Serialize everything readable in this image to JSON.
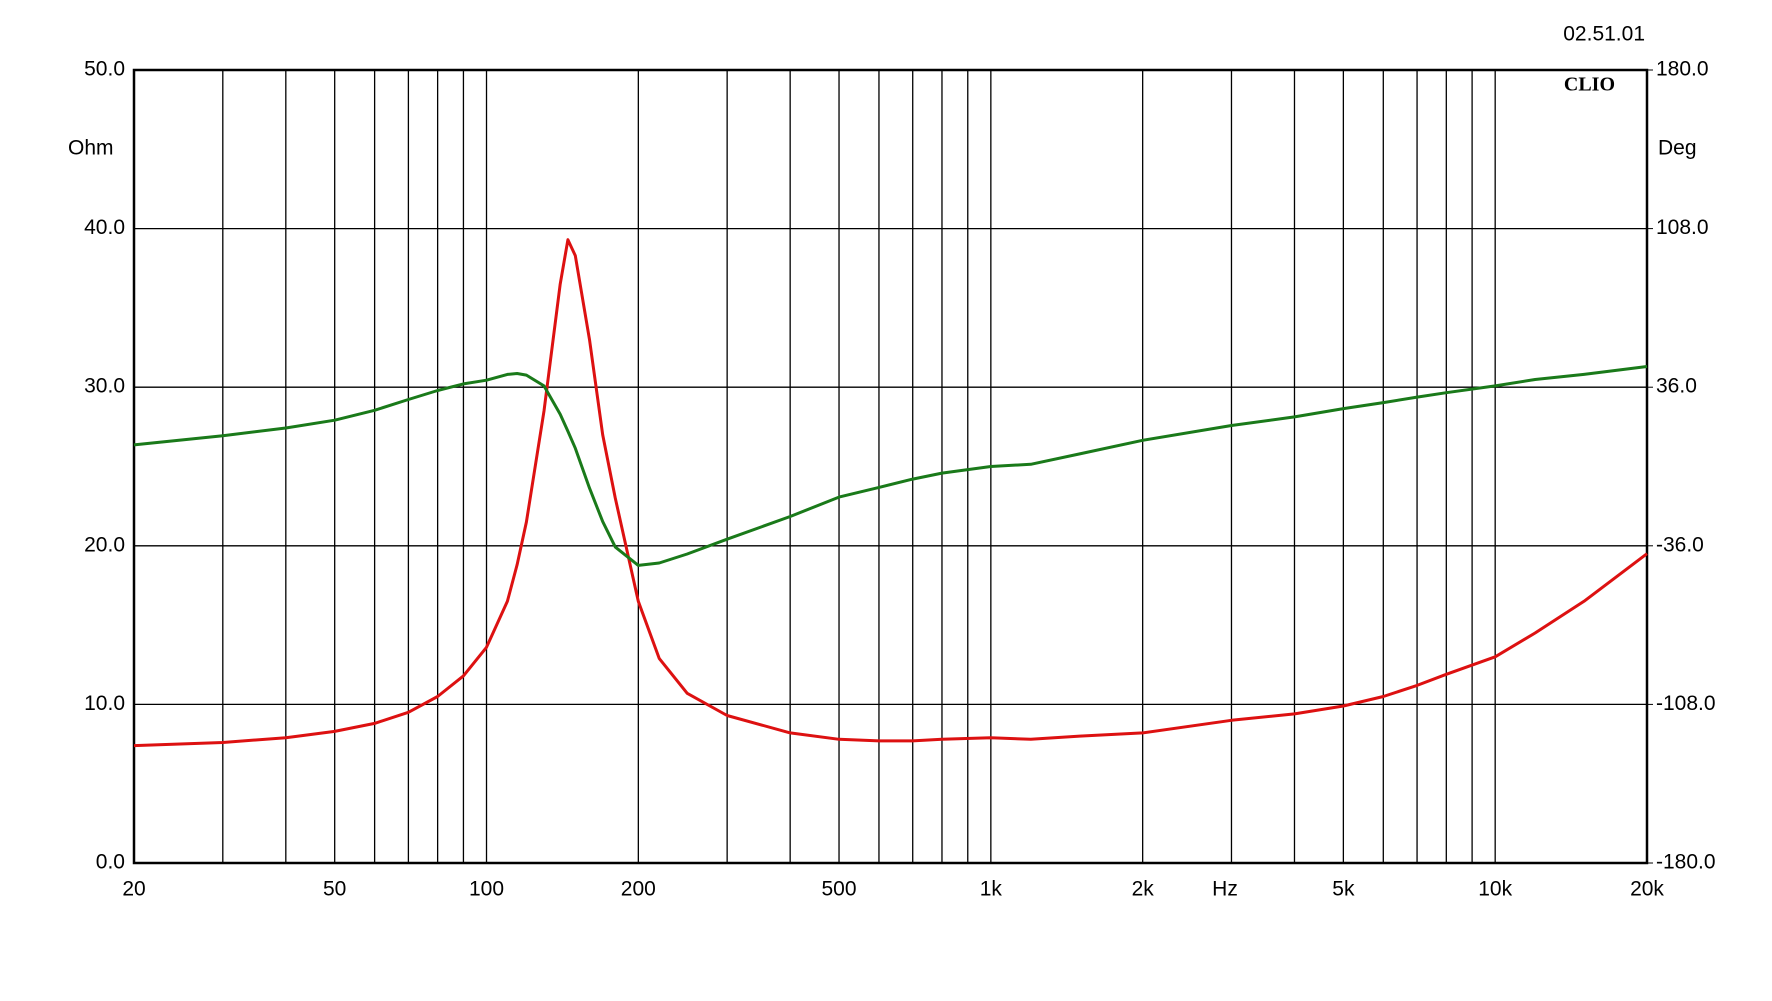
{
  "chart_data": {
    "type": "line",
    "title": "02.51.01",
    "watermark": "CLIO",
    "xlabel": "Hz",
    "ylabel": "Ohm",
    "y2label": "Deg",
    "xscale": "log",
    "grid": true,
    "xlim": [
      20,
      20000
    ],
    "xticks": [
      20,
      50,
      100,
      200,
      500,
      {
        "value": 1000,
        "label": "1k"
      },
      {
        "value": 2000,
        "label": "2k"
      },
      {
        "value": 5000,
        "label": "5k"
      },
      {
        "value": 10000,
        "label": "10k"
      },
      {
        "value": 20000,
        "label": "20k"
      }
    ],
    "xgrid_minor": [
      30,
      40,
      60,
      70,
      80,
      90,
      300,
      400,
      600,
      700,
      800,
      900,
      3000,
      4000,
      6000,
      7000,
      8000,
      9000
    ],
    "ylim": [
      0,
      50
    ],
    "yticks": [
      {
        "value": 0,
        "label": "0.0"
      },
      {
        "value": 10,
        "label": "10.0"
      },
      {
        "value": 20,
        "label": "20.0"
      },
      {
        "value": 30,
        "label": "30.0"
      },
      {
        "value": 40,
        "label": "40.0"
      },
      {
        "value": 50,
        "label": "50.0"
      }
    ],
    "y2lim": [
      -180,
      180
    ],
    "y2ticks": [
      {
        "value": -180,
        "label": "-180.0"
      },
      {
        "value": -108,
        "label": "-108.0"
      },
      {
        "value": -36,
        "label": "-36.0"
      },
      {
        "value": 36,
        "label": "36.0"
      },
      {
        "value": 108,
        "label": "108.0"
      },
      {
        "value": 180,
        "label": "180.0"
      }
    ],
    "x": [
      20,
      30,
      40,
      50,
      60,
      70,
      80,
      90,
      100,
      110,
      115,
      120,
      130,
      140,
      145,
      150,
      160,
      170,
      180,
      200,
      220,
      250,
      300,
      400,
      500,
      600,
      700,
      800,
      1000,
      1200,
      1500,
      2000,
      3000,
      4000,
      5000,
      6000,
      7000,
      8000,
      10000,
      12000,
      15000,
      20000
    ],
    "series": [
      {
        "color": "#dd1111",
        "values": [
          7.4,
          7.6,
          7.9,
          8.3,
          8.8,
          9.5,
          10.5,
          11.8,
          13.6,
          16.5,
          18.8,
          21.5,
          28.5,
          36.5,
          39.3,
          38.3,
          33,
          27,
          23,
          16.5,
          12.9,
          10.7,
          9.3,
          8.2,
          7.8,
          7.7,
          7.7,
          7.8,
          7.9,
          7.8,
          8.0,
          8.2,
          9.0,
          9.4,
          9.9,
          10.5,
          11.2,
          11.9,
          13.0,
          14.5,
          16.5,
          19.5
        ]
      },
      {
        "color": "#1a7a1a",
        "axis": "y2",
        "values": [
          9.8,
          14,
          17.5,
          21,
          25.5,
          30.4,
          34.5,
          37.5,
          39.2,
          41.8,
          42.2,
          41.5,
          36.6,
          23.7,
          16,
          8.3,
          -9.8,
          -25,
          -36.6,
          -44.9,
          -43.8,
          -39.7,
          -33,
          -22.7,
          -13.9,
          -9.5,
          -5.7,
          -3,
          0,
          1,
          5.7,
          11.9,
          18.6,
          22.5,
          26.3,
          29,
          31.5,
          33.5,
          36.6,
          39.5,
          41.8,
          45.4
        ]
      }
    ]
  }
}
